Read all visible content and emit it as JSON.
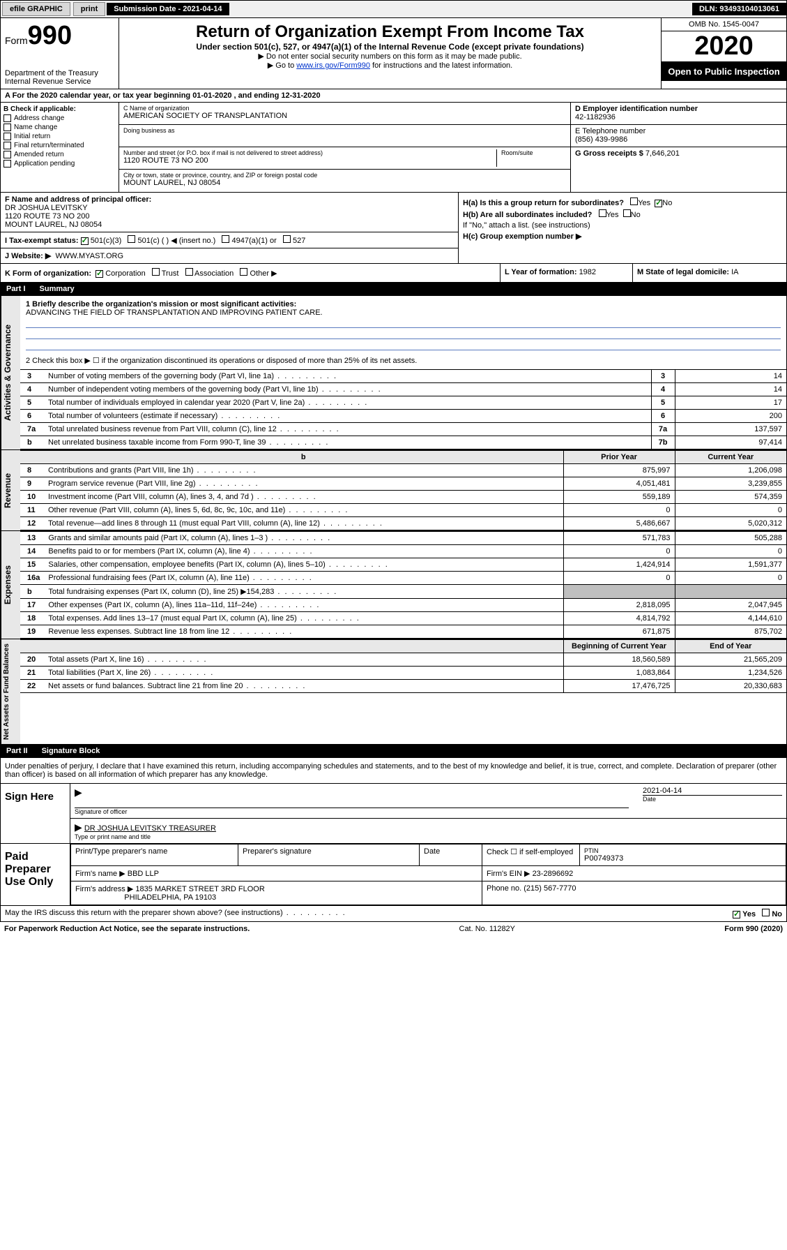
{
  "colors": {
    "black": "#000000",
    "white": "#ffffff",
    "link": "#0033cc",
    "shade": "#bfbfbf",
    "lightgrey": "#e8e8e8",
    "check_green": "#008000",
    "underline_blue": "#5a7bbf"
  },
  "topbar": {
    "efile": "efile GRAPHIC",
    "print": "print",
    "sub_label": "Submission Date - 2021-04-14",
    "dln": "DLN: 93493104013061"
  },
  "header": {
    "form_label": "Form",
    "form_number": "990",
    "dept": "Department of the Treasury",
    "irs": "Internal Revenue Service",
    "title": "Return of Organization Exempt From Income Tax",
    "sub1": "Under section 501(c), 527, or 4947(a)(1) of the Internal Revenue Code (except private foundations)",
    "sub2": "▶ Do not enter social security numbers on this form as it may be made public.",
    "sub3a": "▶ Go to ",
    "sub3_link": "www.irs.gov/Form990",
    "sub3b": " for instructions and the latest information.",
    "omb": "OMB No. 1545-0047",
    "year": "2020",
    "open": "Open to Public Inspection"
  },
  "row_a": "A  For the 2020 calendar year, or tax year beginning 01-01-2020    , and ending 12-31-2020",
  "col_b": {
    "header": "B Check if applicable:",
    "items": [
      "Address change",
      "Name change",
      "Initial return",
      "Final return/terminated",
      "Amended return",
      "Application pending"
    ]
  },
  "col_c": {
    "name_label": "C Name of organization",
    "name": "AMERICAN SOCIETY OF TRANSPLANTATION",
    "dba_label": "Doing business as",
    "addr_label": "Number and street (or P.O. box if mail is not delivered to street address)",
    "room_label": "Room/suite",
    "addr": "1120 ROUTE 73 NO 200",
    "city_label": "City or town, state or province, country, and ZIP or foreign postal code",
    "city": "MOUNT LAUREL, NJ  08054"
  },
  "col_d": {
    "ein_label": "D Employer identification number",
    "ein": "42-1182936",
    "tel_label": "E Telephone number",
    "tel": "(856) 439-9986",
    "gross_label": "G Gross receipts $ ",
    "gross": "7,646,201"
  },
  "row_f": {
    "label": "F  Name and address of principal officer:",
    "name": "DR JOSHUA LEVITSKY",
    "addr1": "1120 ROUTE 73 NO 200",
    "addr2": "MOUNT LAUREL, NJ  08054"
  },
  "row_i": {
    "label": "I  Tax-exempt status:",
    "opts": [
      "501(c)(3)",
      "501(c) (  ) ◀ (insert no.)",
      "4947(a)(1) or",
      "527"
    ]
  },
  "row_j": {
    "label": "J  Website: ▶",
    "val": "WWW.MYAST.ORG"
  },
  "row_h": {
    "a_label": "H(a)  Is this a group return for subordinates?",
    "b_label": "H(b)  Are all subordinates included?",
    "b_note": "If \"No,\" attach a list. (see instructions)",
    "c_label": "H(c)  Group exemption number ▶",
    "yes": "Yes",
    "no": "No"
  },
  "row_k": {
    "label": "K Form of organization:",
    "opts": [
      "Corporation",
      "Trust",
      "Association",
      "Other ▶"
    ],
    "l_label": "L Year of formation: ",
    "l_val": "1982",
    "m_label": "M State of legal domicile: ",
    "m_val": "IA"
  },
  "part1": {
    "title": "Part I",
    "subtitle": "Summary"
  },
  "summary": {
    "line1_label": "1  Briefly describe the organization's mission or most significant activities:",
    "line1_val": "ADVANCING THE FIELD OF TRANSPLANTATION AND IMPROVING PATIENT CARE.",
    "line2": "2   Check this box ▶ ☐  if the organization discontinued its operations or disposed of more than 25% of its net assets.",
    "rows_small": [
      {
        "n": "3",
        "t": "Number of voting members of the governing body (Part VI, line 1a)",
        "box": "3",
        "v": "14"
      },
      {
        "n": "4",
        "t": "Number of independent voting members of the governing body (Part VI, line 1b)",
        "box": "4",
        "v": "14"
      },
      {
        "n": "5",
        "t": "Total number of individuals employed in calendar year 2020 (Part V, line 2a)",
        "box": "5",
        "v": "17"
      },
      {
        "n": "6",
        "t": "Total number of volunteers (estimate if necessary)",
        "box": "6",
        "v": "200"
      },
      {
        "n": "7a",
        "t": "Total unrelated business revenue from Part VIII, column (C), line 12",
        "box": "7a",
        "v": "137,597"
      },
      {
        "n": "b",
        "t": "Net unrelated business taxable income from Form 990-T, line 39",
        "box": "7b",
        "v": "97,414"
      }
    ]
  },
  "fin_header": {
    "prior": "Prior Year",
    "current": "Current Year"
  },
  "revenue": {
    "label": "Revenue",
    "rows": [
      {
        "n": "8",
        "t": "Contributions and grants (Part VIII, line 1h)",
        "p": "875,997",
        "c": "1,206,098"
      },
      {
        "n": "9",
        "t": "Program service revenue (Part VIII, line 2g)",
        "p": "4,051,481",
        "c": "3,239,855"
      },
      {
        "n": "10",
        "t": "Investment income (Part VIII, column (A), lines 3, 4, and 7d )",
        "p": "559,189",
        "c": "574,359"
      },
      {
        "n": "11",
        "t": "Other revenue (Part VIII, column (A), lines 5, 6d, 8c, 9c, 10c, and 11e)",
        "p": "0",
        "c": "0"
      },
      {
        "n": "12",
        "t": "Total revenue—add lines 8 through 11 (must equal Part VIII, column (A), line 12)",
        "p": "5,486,667",
        "c": "5,020,312"
      }
    ]
  },
  "expenses": {
    "label": "Expenses",
    "rows": [
      {
        "n": "13",
        "t": "Grants and similar amounts paid (Part IX, column (A), lines 1–3 )",
        "p": "571,783",
        "c": "505,288"
      },
      {
        "n": "14",
        "t": "Benefits paid to or for members (Part IX, column (A), line 4)",
        "p": "0",
        "c": "0"
      },
      {
        "n": "15",
        "t": "Salaries, other compensation, employee benefits (Part IX, column (A), lines 5–10)",
        "p": "1,424,914",
        "c": "1,591,377"
      },
      {
        "n": "16a",
        "t": "Professional fundraising fees (Part IX, column (A), line 11e)",
        "p": "0",
        "c": "0"
      },
      {
        "n": "b",
        "t": "Total fundraising expenses (Part IX, column (D), line 25) ▶154,283",
        "p": "",
        "c": "",
        "shade": true
      },
      {
        "n": "17",
        "t": "Other expenses (Part IX, column (A), lines 11a–11d, 11f–24e)",
        "p": "2,818,095",
        "c": "2,047,945"
      },
      {
        "n": "18",
        "t": "Total expenses. Add lines 13–17 (must equal Part IX, column (A), line 25)",
        "p": "4,814,792",
        "c": "4,144,610"
      },
      {
        "n": "19",
        "t": "Revenue less expenses. Subtract line 18 from line 12",
        "p": "671,875",
        "c": "875,702"
      }
    ]
  },
  "net_header": {
    "prior": "Beginning of Current Year",
    "current": "End of Year"
  },
  "netassets": {
    "label": "Net Assets or Fund Balances",
    "rows": [
      {
        "n": "20",
        "t": "Total assets (Part X, line 16)",
        "p": "18,560,589",
        "c": "21,565,209"
      },
      {
        "n": "21",
        "t": "Total liabilities (Part X, line 26)",
        "p": "1,083,864",
        "c": "1,234,526"
      },
      {
        "n": "22",
        "t": "Net assets or fund balances. Subtract line 21 from line 20",
        "p": "17,476,725",
        "c": "20,330,683"
      }
    ]
  },
  "part2": {
    "title": "Part II",
    "subtitle": "Signature Block"
  },
  "sig_decl": "Under penalties of perjury, I declare that I have examined this return, including accompanying schedules and statements, and to the best of my knowledge and belief, it is true, correct, and complete. Declaration of preparer (other than officer) is based on all information of which preparer has any knowledge.",
  "sign": {
    "left": "Sign Here",
    "sig_officer": "Signature of officer",
    "date": "2021-04-14",
    "date_label": "Date",
    "name": "DR JOSHUA LEVITSKY TREASURER",
    "name_label": "Type or print name and title"
  },
  "paid": {
    "left": "Paid Preparer Use Only",
    "h1": "Print/Type preparer's name",
    "h2": "Preparer's signature",
    "h3": "Date",
    "h4_check": "Check ☐ if self-employed",
    "h5": "PTIN",
    "ptin": "P00749373",
    "firm_label": "Firm's name    ▶",
    "firm": "BBD LLP",
    "ein_label": "Firm's EIN ▶",
    "ein": "23-2896692",
    "addr_label": "Firm's address ▶",
    "addr1": "1835 MARKET STREET 3RD FLOOR",
    "addr2": "PHILADELPHIA, PA  19103",
    "phone_label": "Phone no. ",
    "phone": "(215) 567-7770"
  },
  "discuss": {
    "q": "May the IRS discuss this return with the preparer shown above? (see instructions)",
    "yes": "Yes",
    "no": "No"
  },
  "footer": {
    "left": "For Paperwork Reduction Act Notice, see the separate instructions.",
    "mid": "Cat. No. 11282Y",
    "right": "Form 990 (2020)"
  }
}
